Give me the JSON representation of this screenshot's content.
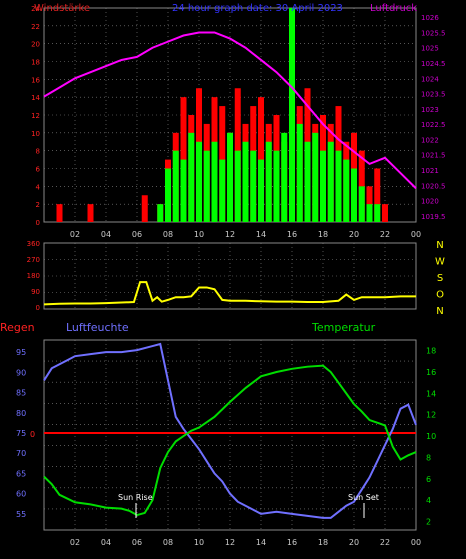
{
  "header": {
    "left_title": "Windstärke",
    "center_title": "24 hour graph date: 30 April 2023",
    "right_title": "Luftdruck"
  },
  "bottom_header": {
    "left": "Regen",
    "center_left": "Luftfeuchte",
    "right": "Temperatur"
  },
  "annotations": {
    "sun_rise": "Sun Rise",
    "sun_set": "Sun Set"
  },
  "colors": {
    "wind_gust": "#ff0000",
    "wind_avg": "#00ff00",
    "pressure": "#ff00ff",
    "direction": "#ffff00",
    "humidity": "#7070ff",
    "temperature": "#00dd00",
    "rain": "#ff0000",
    "grid": "#888888",
    "axis_text_left": "#ff2222",
    "axis_text_right": "#cc00cc"
  },
  "chart_data": [
    {
      "type": "bar",
      "x_ticks": [
        "02",
        "04",
        "06",
        "08",
        "10",
        "12",
        "14",
        "16",
        "18",
        "20",
        "22",
        "00"
      ],
      "y_left_ticks": [
        "0",
        "2",
        "4",
        "6",
        "8",
        "10",
        "12",
        "14",
        "16",
        "18",
        "20",
        "22",
        "24"
      ],
      "y_right_ticks": [
        "1019.5",
        "1020",
        "1020.5",
        "1021",
        "1021.5",
        "1022",
        "1022.5",
        "1023",
        "1023.5",
        "1024",
        "1024.5",
        "1025",
        "1025.5",
        "1026"
      ],
      "ylim_left": [
        0,
        24
      ],
      "ylim_right": [
        1019.3,
        1026.3
      ],
      "series": [
        {
          "name": "Windstärke",
          "kind": "gust_bars",
          "hours": [
            1.0,
            3.0,
            6.5,
            7.5,
            8.0,
            8.5,
            9.0,
            9.5,
            10.0,
            10.5,
            11.0,
            11.5,
            12.0,
            12.5,
            13.0,
            13.5,
            14.0,
            14.5,
            15.0,
            15.5,
            16.0,
            16.5,
            17.0,
            17.5,
            18.0,
            18.5,
            19.0,
            19.5,
            20.0,
            20.5,
            21.0,
            21.5,
            22.0
          ],
          "values": [
            2,
            2,
            3,
            2,
            7,
            10,
            14,
            12,
            15,
            11,
            14,
            13,
            10,
            15,
            11,
            13,
            14,
            11,
            12,
            9,
            14,
            13,
            15,
            11,
            12,
            11,
            13,
            9,
            10,
            8,
            4,
            6,
            2
          ]
        },
        {
          "name": "Wind average",
          "kind": "avg_bars",
          "hours": [
            7.5,
            8.0,
            8.5,
            9.0,
            9.5,
            10.0,
            10.5,
            11.0,
            11.5,
            12.0,
            12.5,
            13.0,
            13.5,
            14.0,
            14.5,
            15.0,
            15.5,
            16.0,
            16.5,
            17.0,
            17.5,
            18.0,
            18.5,
            19.0,
            19.5,
            20.0,
            20.5,
            21.0,
            21.5
          ],
          "values": [
            2,
            6,
            8,
            7,
            10,
            9,
            8,
            9,
            7,
            10,
            8,
            9,
            8,
            7,
            9,
            8,
            10,
            24,
            11,
            9,
            10,
            8,
            9,
            8,
            7,
            6,
            4,
            2,
            2
          ]
        },
        {
          "name": "Luftdruck",
          "kind": "line_right_axis",
          "hours": [
            0.0,
            1.0,
            2.0,
            3.0,
            4.0,
            5.0,
            6.0,
            7.0,
            8.0,
            9.0,
            10.0,
            11.0,
            12.0,
            13.0,
            14.0,
            15.0,
            16.0,
            17.0,
            18.0,
            19.0,
            20.0,
            21.0,
            22.0,
            23.0,
            24.0
          ],
          "values": [
            1023.4,
            1023.7,
            1024.0,
            1024.2,
            1024.4,
            1024.6,
            1024.7,
            1025.0,
            1025.2,
            1025.4,
            1025.5,
            1025.5,
            1025.3,
            1025.0,
            1024.6,
            1024.2,
            1023.7,
            1023.1,
            1022.5,
            1022.0,
            1021.6,
            1021.2,
            1021.4,
            1020.9,
            1020.4
          ]
        }
      ]
    },
    {
      "type": "line",
      "x_ticks": [
        "02",
        "04",
        "06",
        "08",
        "10",
        "12",
        "14",
        "16",
        "18",
        "20",
        "22",
        "00"
      ],
      "y_left_ticks": [
        "0",
        "90",
        "180",
        "270",
        "360"
      ],
      "y_right_labels": [
        "N",
        "W",
        "S",
        "O",
        "N"
      ],
      "ylim": [
        0,
        360
      ],
      "series": [
        {
          "name": "Windrichtung",
          "hours": [
            0.0,
            1.0,
            2.0,
            3.0,
            4.0,
            5.0,
            5.8,
            6.2,
            6.6,
            7.0,
            7.3,
            7.6,
            8.0,
            8.5,
            9.0,
            9.5,
            10.0,
            10.5,
            11.0,
            11.5,
            12.0,
            13.0,
            14.0,
            15.0,
            16.0,
            17.0,
            18.0,
            19.0,
            19.5,
            20.0,
            20.5,
            21.0,
            22.0,
            23.0,
            24.0
          ],
          "values": [
            15,
            18,
            20,
            20,
            22,
            25,
            28,
            140,
            140,
            35,
            55,
            30,
            40,
            55,
            55,
            60,
            110,
            110,
            100,
            40,
            35,
            35,
            32,
            30,
            30,
            28,
            28,
            35,
            70,
            40,
            55,
            55,
            55,
            60,
            60
          ]
        }
      ]
    },
    {
      "type": "line",
      "x_ticks": [
        "02",
        "04",
        "06",
        "08",
        "10",
        "12",
        "14",
        "16",
        "18",
        "20",
        "22",
        "00"
      ],
      "y_left_ticks": [
        "55",
        "60",
        "65",
        "70",
        "75",
        "80",
        "85",
        "90",
        "95"
      ],
      "y_right_ticks": [
        "2",
        "4",
        "6",
        "8",
        "10",
        "12",
        "14",
        "16",
        "18"
      ],
      "ylim_left": [
        51,
        98
      ],
      "ylim_right": [
        1.2,
        19
      ],
      "series": [
        {
          "name": "Luftfeuchte",
          "axis": "left",
          "hours": [
            0.0,
            0.5,
            1.0,
            1.5,
            2.0,
            3.0,
            4.0,
            5.0,
            6.0,
            7.0,
            7.5,
            8.0,
            8.5,
            9.0,
            9.5,
            10.0,
            10.5,
            11.0,
            11.5,
            12.0,
            12.5,
            13.0,
            13.5,
            14.0,
            15.0,
            16.0,
            17.0,
            18.0,
            18.5,
            19.0,
            19.5,
            20.0,
            20.5,
            21.0,
            21.5,
            22.0,
            22.5,
            23.0,
            23.5,
            24.0
          ],
          "values": [
            88,
            91,
            92,
            93,
            94,
            94.5,
            95,
            95,
            95.5,
            96.5,
            97,
            88,
            79,
            76,
            73.5,
            71,
            68,
            65,
            63,
            60,
            58,
            57,
            56,
            55,
            55.5,
            55,
            54.5,
            54,
            54,
            55.5,
            57,
            58,
            61,
            64,
            68,
            72,
            76,
            81,
            82,
            77
          ]
        },
        {
          "name": "Temperatur",
          "axis": "right",
          "hours": [
            0.0,
            0.5,
            1.0,
            2.0,
            3.0,
            4.0,
            5.0,
            5.5,
            6.0,
            6.5,
            7.0,
            7.5,
            8.0,
            8.5,
            9.0,
            9.5,
            10.0,
            11.0,
            12.0,
            13.0,
            14.0,
            15.0,
            16.0,
            17.0,
            18.0,
            18.5,
            19.0,
            19.5,
            20.0,
            20.5,
            21.0,
            22.0,
            22.5,
            23.0,
            23.5,
            24.0
          ],
          "values": [
            6.2,
            5.5,
            4.5,
            3.8,
            3.6,
            3.3,
            3.2,
            3.0,
            2.6,
            2.8,
            4.0,
            7.0,
            8.5,
            9.5,
            10.0,
            10.5,
            10.8,
            11.8,
            13.2,
            14.5,
            15.6,
            16.0,
            16.3,
            16.5,
            16.6,
            16.0,
            15.0,
            14.0,
            13.0,
            12.3,
            11.5,
            11.0,
            9.0,
            7.8,
            8.2,
            8.5
          ]
        },
        {
          "name": "Regen",
          "axis": "left",
          "hours": [
            0.0,
            24.0
          ],
          "values": [
            75,
            75
          ]
        }
      ]
    }
  ]
}
